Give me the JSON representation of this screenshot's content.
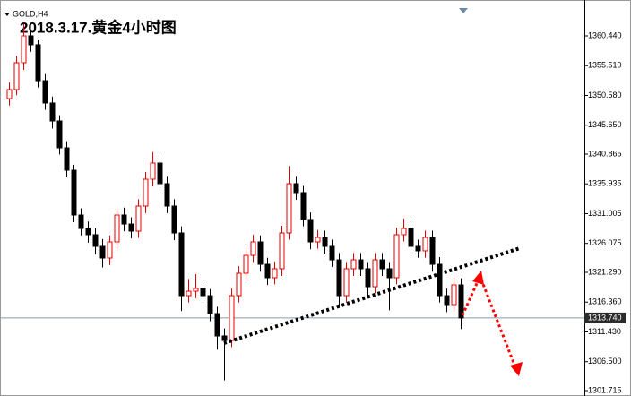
{
  "chart_data": {
    "type": "candlestick",
    "symbol_label": "GOLD,H4",
    "title": "2018.3.17.黄金4小时图",
    "up_color": "#e00000",
    "down_color": "#000000",
    "ylim": [
      1301.12,
      1366.37
    ],
    "yticks": [
      {
        "value": 1360.44,
        "label": "1360.440"
      },
      {
        "value": 1355.51,
        "label": "1355.510"
      },
      {
        "value": 1350.58,
        "label": "1350.580"
      },
      {
        "value": 1345.65,
        "label": "1345.650"
      },
      {
        "value": 1340.865,
        "label": "1340.865"
      },
      {
        "value": 1335.935,
        "label": "1335.935"
      },
      {
        "value": 1331.005,
        "label": "1331.005"
      },
      {
        "value": 1326.075,
        "label": "1326.075"
      },
      {
        "value": 1321.29,
        "label": "1321.290"
      },
      {
        "value": 1316.36,
        "label": "1316.360"
      },
      {
        "value": 1311.43,
        "label": "1311.430"
      },
      {
        "value": 1306.5,
        "label": "1306.500"
      },
      {
        "value": 1301.715,
        "label": "1301.715"
      }
    ],
    "current_price": {
      "value": 1313.74,
      "label": "1313.740"
    },
    "open": [
      1350.05,
      1351.54,
      1355.99,
      1360.44,
      1358.96,
      1353.02,
      1349.32,
      1346.35,
      1341.9,
      1338.19,
      1330.78,
      1328.55,
      1327.52,
      1325.59,
      1323.66,
      1326.33,
      1330.78,
      1329.29,
      1328.11,
      1332.26,
      1336.71,
      1339.38,
      1335.97,
      1332.26,
      1327.81,
      1317.43,
      1318.17,
      1318.62,
      1317.43,
      1314.46,
      1310.76,
      1310.02,
      1317.43,
      1321.14,
      1324.1,
      1326.33,
      1322.62,
      1320.4,
      1321.88,
      1327.81,
      1335.97,
      1334.49,
      1330.04,
      1326.33,
      1327.07,
      1325.59,
      1323.36,
      1317.43,
      1321.88,
      1323.36,
      1321.88,
      1318.91,
      1323.36,
      1321.88,
      1320.4,
      1327.52,
      1328.55,
      1325.59,
      1324.85,
      1327.07,
      1322.62,
      1317.43,
      1315.95,
      1319.21
    ],
    "high": [
      1352.7,
      1357.1,
      1362.4,
      1361.5,
      1359.7,
      1354.1,
      1350.4,
      1347.3,
      1343.0,
      1339.1,
      1331.9,
      1329.7,
      1328.6,
      1326.8,
      1327.4,
      1331.9,
      1332.0,
      1330.4,
      1333.4,
      1337.9,
      1341.2,
      1340.5,
      1337.1,
      1333.4,
      1328.9,
      1320.2,
      1321.0,
      1319.8,
      1318.5,
      1315.6,
      1312.0,
      1318.6,
      1322.3,
      1325.3,
      1327.5,
      1327.4,
      1323.7,
      1323.1,
      1329.0,
      1338.9,
      1337.1,
      1335.6,
      1331.2,
      1328.3,
      1328.2,
      1326.7,
      1324.5,
      1323.0,
      1324.5,
      1324.5,
      1323.0,
      1324.5,
      1324.5,
      1323.0,
      1328.7,
      1330.2,
      1329.7,
      1326.7,
      1328.2,
      1328.2,
      1323.8,
      1318.6,
      1320.4,
      1320.3
    ],
    "low": [
      1348.9,
      1350.6,
      1354.8,
      1357.8,
      1351.9,
      1348.2,
      1345.1,
      1340.8,
      1337.0,
      1329.6,
      1327.4,
      1326.2,
      1324.3,
      1322.1,
      1322.5,
      1325.2,
      1328.1,
      1326.9,
      1327.0,
      1331.1,
      1335.5,
      1334.8,
      1331.1,
      1326.6,
      1314.9,
      1316.3,
      1317.0,
      1316.2,
      1313.2,
      1308.5,
      1303.4,
      1308.9,
      1316.3,
      1320.0,
      1323.0,
      1321.4,
      1319.2,
      1319.3,
      1320.7,
      1326.7,
      1333.3,
      1328.9,
      1325.1,
      1325.2,
      1324.4,
      1322.2,
      1315.5,
      1316.3,
      1320.7,
      1320.7,
      1317.0,
      1317.8,
      1320.7,
      1315.0,
      1319.3,
      1326.4,
      1324.4,
      1323.7,
      1323.7,
      1321.4,
      1316.3,
      1314.7,
      1314.8,
      1311.9
    ],
    "close": [
      1351.54,
      1355.99,
      1360.44,
      1358.96,
      1353.02,
      1349.32,
      1346.35,
      1341.9,
      1338.19,
      1330.78,
      1328.55,
      1327.52,
      1325.59,
      1323.66,
      1326.33,
      1330.78,
      1329.29,
      1328.11,
      1332.26,
      1336.71,
      1339.38,
      1335.97,
      1332.26,
      1327.81,
      1317.43,
      1318.17,
      1318.62,
      1317.43,
      1314.46,
      1310.76,
      1310.02,
      1317.43,
      1321.14,
      1324.1,
      1326.33,
      1322.62,
      1320.4,
      1321.88,
      1327.81,
      1335.97,
      1334.49,
      1330.04,
      1326.33,
      1327.07,
      1325.59,
      1323.36,
      1317.43,
      1321.88,
      1323.36,
      1321.88,
      1318.91,
      1323.36,
      1321.88,
      1320.4,
      1327.52,
      1328.55,
      1325.59,
      1324.85,
      1327.07,
      1322.62,
      1317.43,
      1315.95,
      1319.21,
      1313.74
    ]
  }
}
